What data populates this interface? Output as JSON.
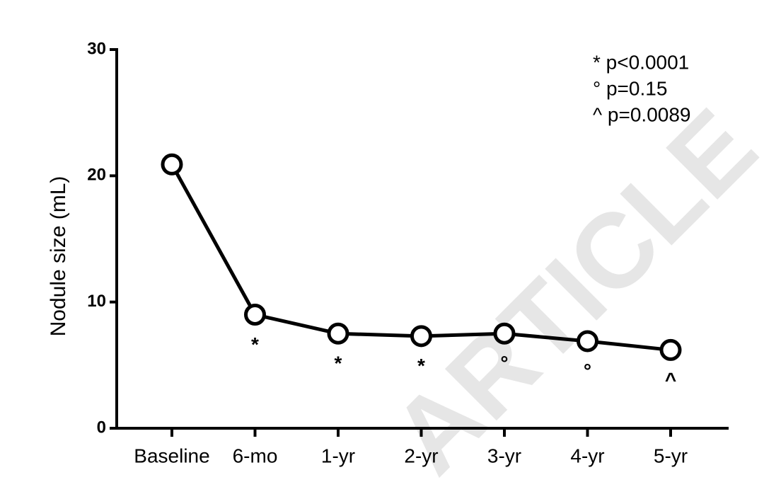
{
  "chart_data": {
    "type": "line",
    "y_label": "Nodule size (mL)",
    "categories": [
      "Baseline",
      "6-mo",
      "1-yr",
      "2-yr",
      "3-yr",
      "4-yr",
      "5-yr"
    ],
    "values": [
      20.9,
      9.0,
      7.5,
      7.3,
      7.5,
      6.9,
      6.2
    ],
    "point_labels": [
      null,
      "*",
      "*",
      "*",
      "°",
      "°",
      "^"
    ],
    "legend_notes": [
      "* p<0.0001",
      "° p=0.15",
      "^ p=0.0089"
    ],
    "watermark": "ARTICLE",
    "color": "#000000",
    "ylim": [
      0,
      30
    ],
    "yticks": [
      0,
      10,
      20,
      30
    ]
  }
}
